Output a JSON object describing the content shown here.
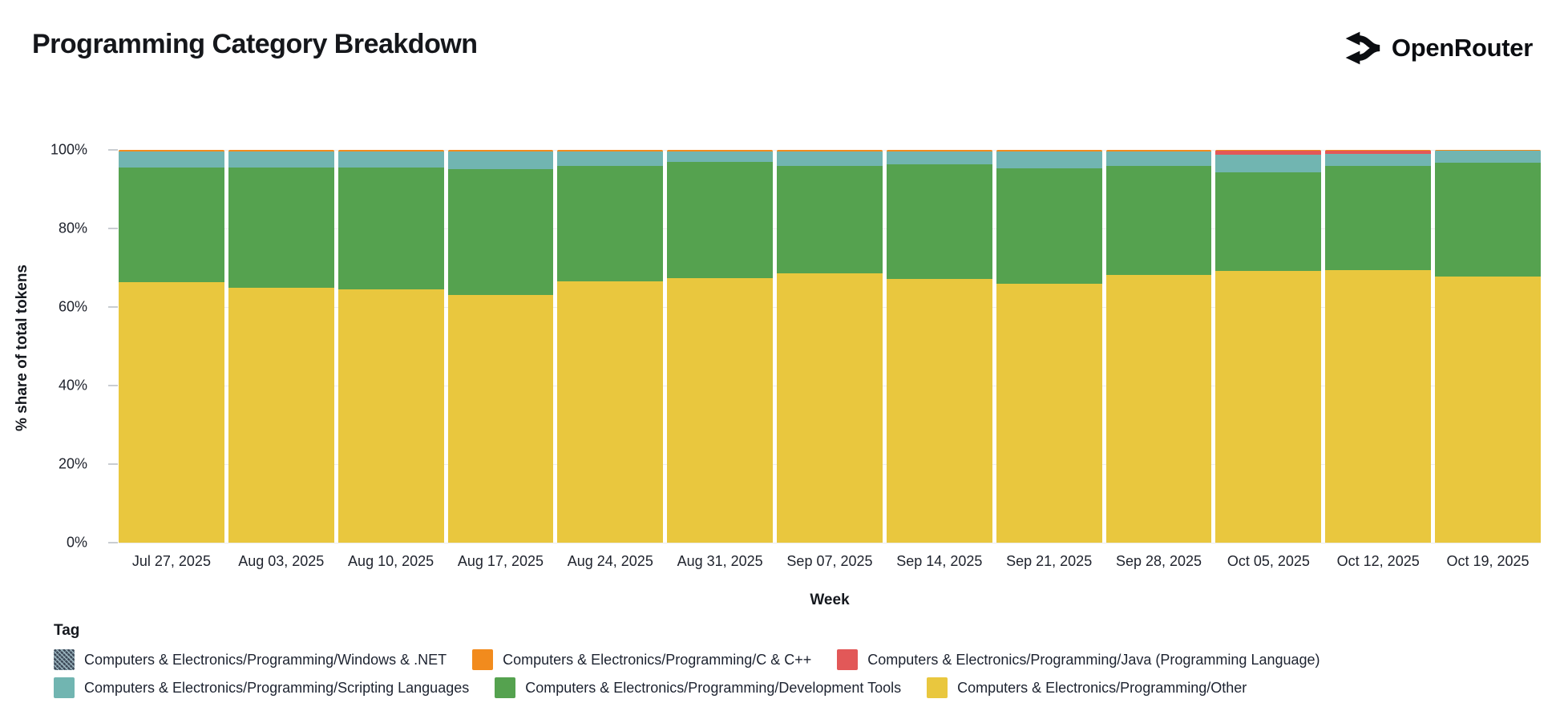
{
  "header": {
    "title": "Programming Category Breakdown",
    "brand": "OpenRouter"
  },
  "chart_data": {
    "type": "bar",
    "stacked": true,
    "percent": true,
    "title": "Programming Category Breakdown",
    "xlabel": "Week",
    "ylabel": "% share of total tokens",
    "ylim": [
      0,
      100
    ],
    "ytick_labels": [
      "0%",
      "20%",
      "40%",
      "60%",
      "80%",
      "100%"
    ],
    "grid": "horizontal-faint",
    "legend_position": "bottom",
    "categories": [
      "Jul 27, 2025",
      "Aug 03, 2025",
      "Aug 10, 2025",
      "Aug 17, 2025",
      "Aug 24, 2025",
      "Aug 31, 2025",
      "Sep 07, 2025",
      "Sep 14, 2025",
      "Sep 21, 2025",
      "Sep 28, 2025",
      "Oct 05, 2025",
      "Oct 12, 2025",
      "Oct 19, 2025"
    ],
    "series": [
      {
        "name": "Computers & Electronics/Programming/Other",
        "color": "#e9c73e",
        "values": [
          66.4,
          64.8,
          64.5,
          63.1,
          66.5,
          67.4,
          68.6,
          67.1,
          65.9,
          68.2,
          69.1,
          69.3,
          67.8
        ]
      },
      {
        "name": "Computers & Electronics/Programming/Development Tools",
        "color": "#55a24f",
        "values": [
          29.2,
          30.8,
          31.0,
          31.9,
          29.4,
          29.5,
          27.4,
          29.2,
          29.5,
          27.8,
          25.2,
          26.7,
          28.9
        ]
      },
      {
        "name": "Computers & Electronics/Programming/Scripting Languages",
        "color": "#71b5b1",
        "values": [
          4.0,
          4.0,
          4.1,
          4.6,
          3.7,
          2.7,
          3.6,
          3.3,
          4.2,
          3.6,
          4.5,
          3.0,
          3.0
        ]
      },
      {
        "name": "Computers & Electronics/Programming/Java (Programming Language)",
        "color": "#e25858",
        "values": [
          0,
          0,
          0,
          0,
          0,
          0,
          0,
          0,
          0,
          0,
          1.0,
          0.8,
          0
        ]
      },
      {
        "name": "Computers & Electronics/Programming/C & C++",
        "color": "#f28b1d",
        "values": [
          0.4,
          0.4,
          0.4,
          0.4,
          0.4,
          0.4,
          0.4,
          0.4,
          0.4,
          0.4,
          0.2,
          0.2,
          0.3
        ]
      },
      {
        "name": "Computers & Electronics/Programming/Windows & .NET",
        "color": "#3e4a59",
        "values": [
          0,
          0,
          0,
          0,
          0,
          0,
          0,
          0,
          0,
          0,
          0,
          0,
          0
        ]
      }
    ]
  },
  "legend": {
    "title": "Tag",
    "rows": [
      [
        {
          "label": "Computers & Electronics/Programming/Windows & .NET",
          "color": "#3e4a59",
          "patterned": true
        },
        {
          "label": "Computers & Electronics/Programming/C & C++",
          "color": "#f28b1d",
          "patterned": false
        },
        {
          "label": "Computers & Electronics/Programming/Java (Programming Language)",
          "color": "#e25858",
          "patterned": false
        }
      ],
      [
        {
          "label": "Computers & Electronics/Programming/Scripting Languages",
          "color": "#71b5b1",
          "patterned": false
        },
        {
          "label": "Computers & Electronics/Programming/Development Tools",
          "color": "#55a24f",
          "patterned": false
        },
        {
          "label": "Computers & Electronics/Programming/Other",
          "color": "#e9c73e",
          "patterned": false
        }
      ]
    ]
  }
}
